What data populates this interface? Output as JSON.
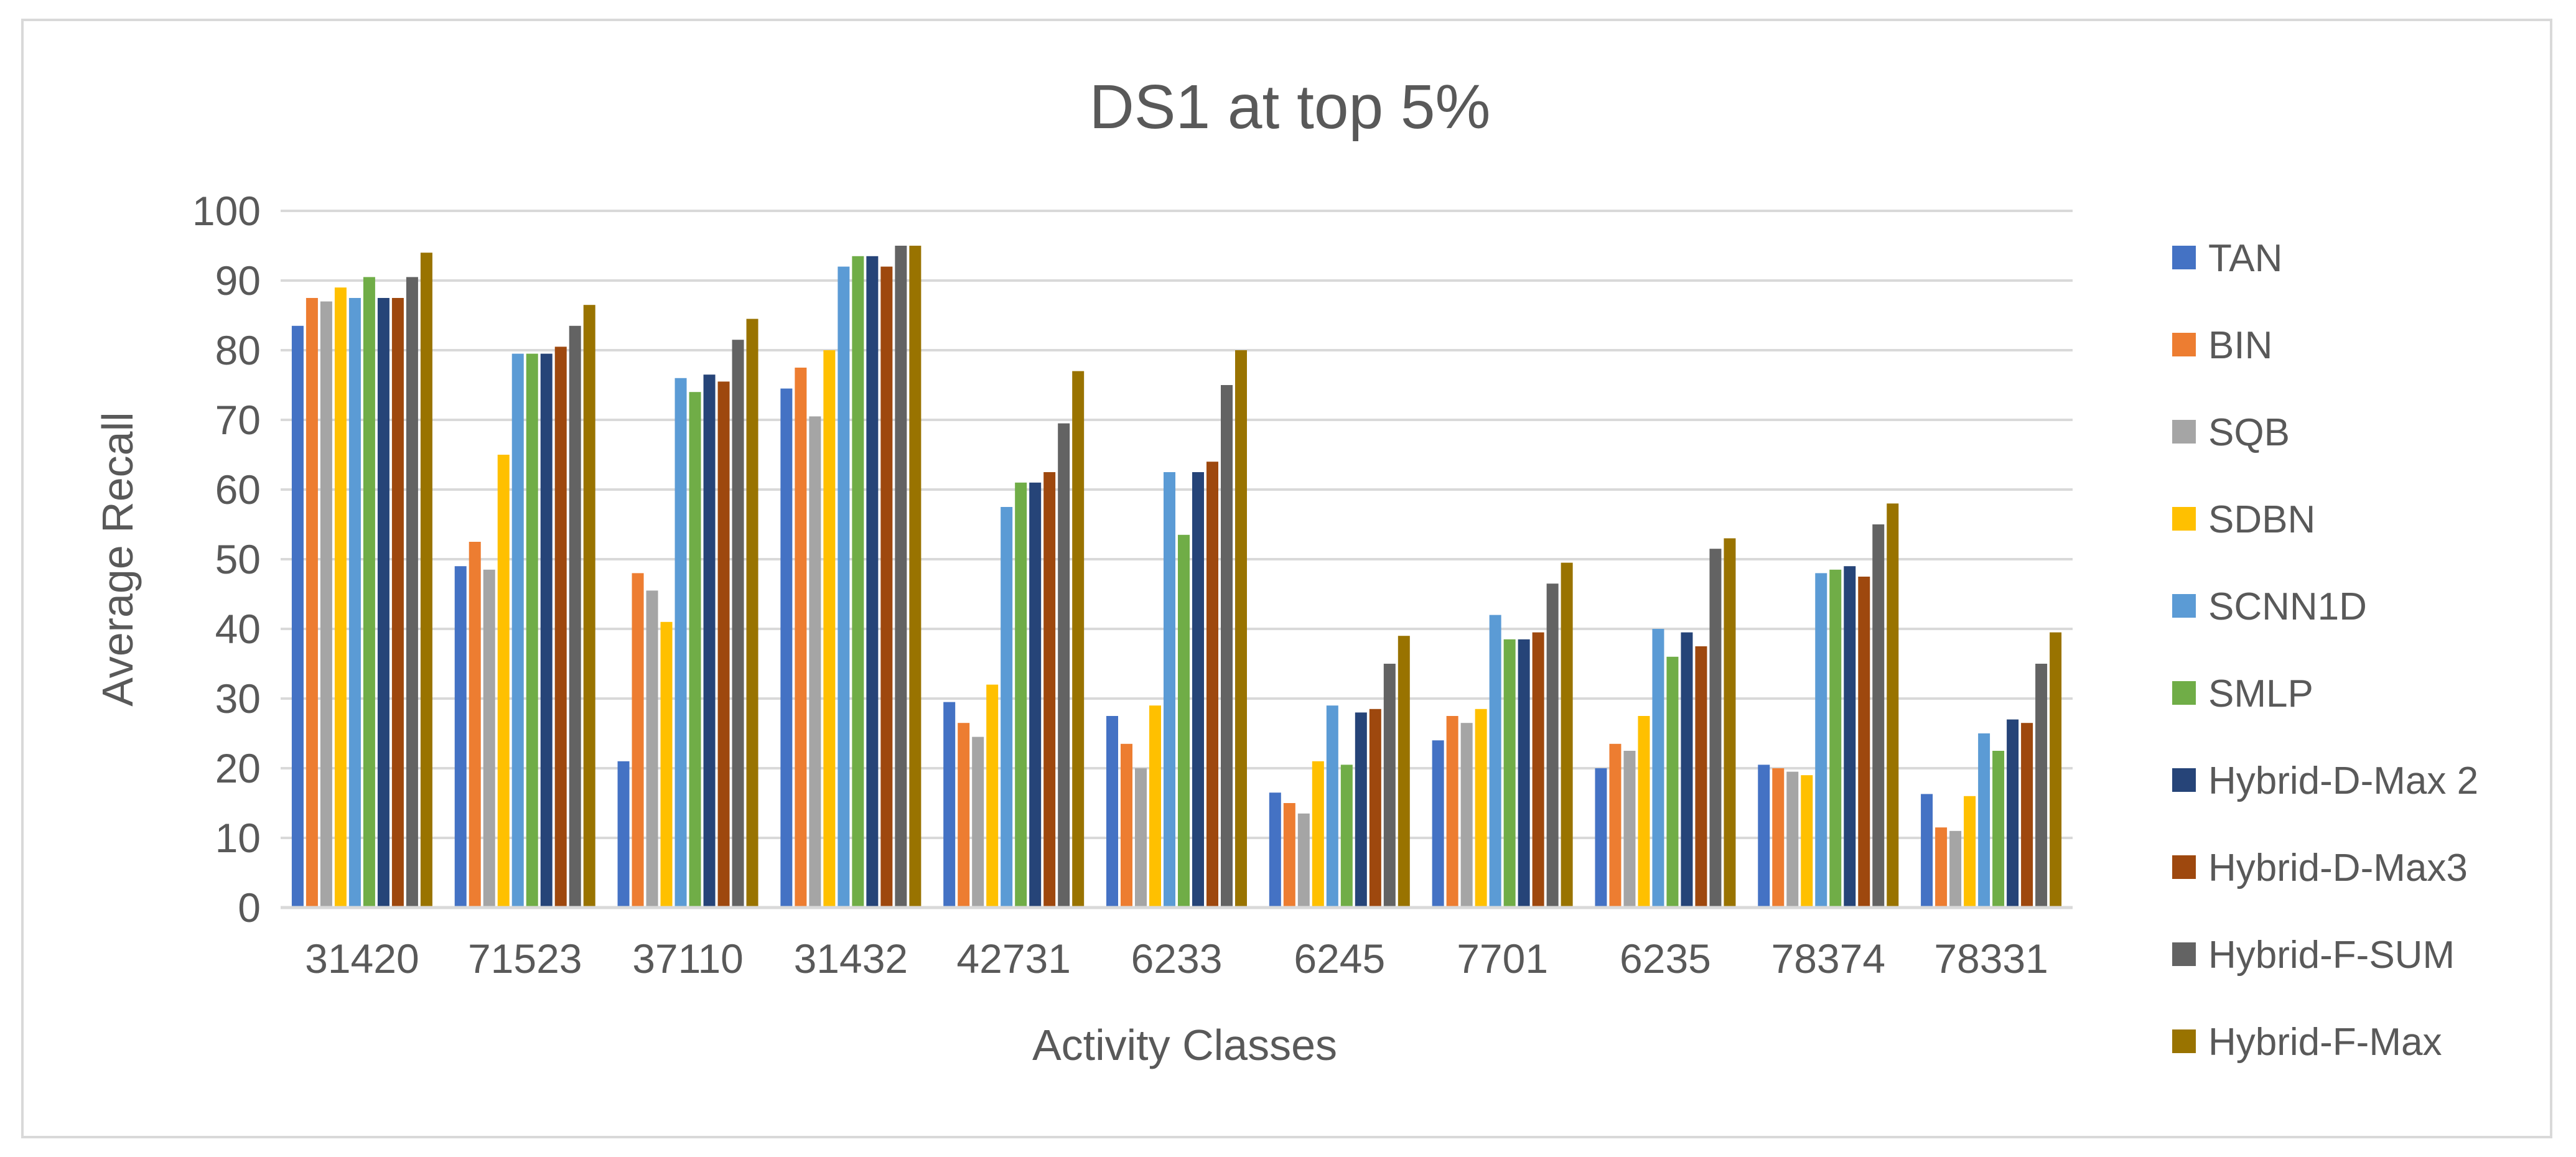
{
  "chart_data": {
    "type": "bar",
    "title": "DS1 at top 5%",
    "xlabel": "Activity  Classes",
    "ylabel": "Average Recall",
    "ylim": [
      0,
      100
    ],
    "yticks": [
      0,
      10,
      20,
      30,
      40,
      50,
      60,
      70,
      80,
      90,
      100
    ],
    "grid": true,
    "legend_position": "right",
    "categories": [
      "31420",
      "71523",
      "37110",
      "31432",
      "42731",
      "6233",
      "6245",
      "7701",
      "6235",
      "78374",
      "78331"
    ],
    "series": [
      {
        "name": "TAN",
        "color": "#4472C4",
        "values": [
          83.5,
          49.0,
          21.0,
          74.5,
          29.5,
          27.5,
          16.5,
          24.0,
          20.0,
          20.5,
          16.3
        ]
      },
      {
        "name": "BIN",
        "color": "#ED7D31",
        "values": [
          87.5,
          52.5,
          48.0,
          77.5,
          26.5,
          23.5,
          15.0,
          27.5,
          23.5,
          20.0,
          11.5
        ]
      },
      {
        "name": "SQB",
        "color": "#A5A5A5",
        "values": [
          87.0,
          48.5,
          45.5,
          70.5,
          24.5,
          20.0,
          13.5,
          26.5,
          22.5,
          19.5,
          11.0
        ]
      },
      {
        "name": "SDBN",
        "color": "#FFC000",
        "values": [
          89.0,
          65.0,
          41.0,
          80.0,
          32.0,
          29.0,
          21.0,
          28.5,
          27.5,
          19.0,
          16.0
        ]
      },
      {
        "name": "SCNN1D",
        "color": "#5B9BD5",
        "values": [
          87.5,
          79.5,
          76.0,
          92.0,
          57.5,
          62.5,
          29.0,
          42.0,
          40.0,
          48.0,
          25.0
        ]
      },
      {
        "name": "SMLP",
        "color": "#70AD47",
        "values": [
          90.5,
          79.5,
          74.0,
          93.5,
          61.0,
          53.5,
          20.5,
          38.5,
          36.0,
          48.5,
          22.5
        ]
      },
      {
        "name": "Hybrid-D-Max 2",
        "color": "#264478",
        "values": [
          87.5,
          79.5,
          76.5,
          93.5,
          61.0,
          62.5,
          28.0,
          38.5,
          39.5,
          49.0,
          27.0
        ]
      },
      {
        "name": "Hybrid-D-Max3",
        "color": "#9E480E",
        "values": [
          87.5,
          80.5,
          75.5,
          92.0,
          62.5,
          64.0,
          28.5,
          39.5,
          37.5,
          47.5,
          26.5
        ]
      },
      {
        "name": "Hybrid-F-SUM",
        "color": "#636363",
        "values": [
          90.5,
          83.5,
          81.5,
          95.0,
          69.5,
          75.0,
          35.0,
          46.5,
          51.5,
          55.0,
          35.0
        ]
      },
      {
        "name": "Hybrid-F-Max",
        "color": "#997300",
        "values": [
          94.0,
          86.5,
          84.5,
          95.0,
          77.0,
          80.0,
          39.0,
          49.5,
          53.0,
          58.0,
          39.5
        ]
      }
    ]
  }
}
